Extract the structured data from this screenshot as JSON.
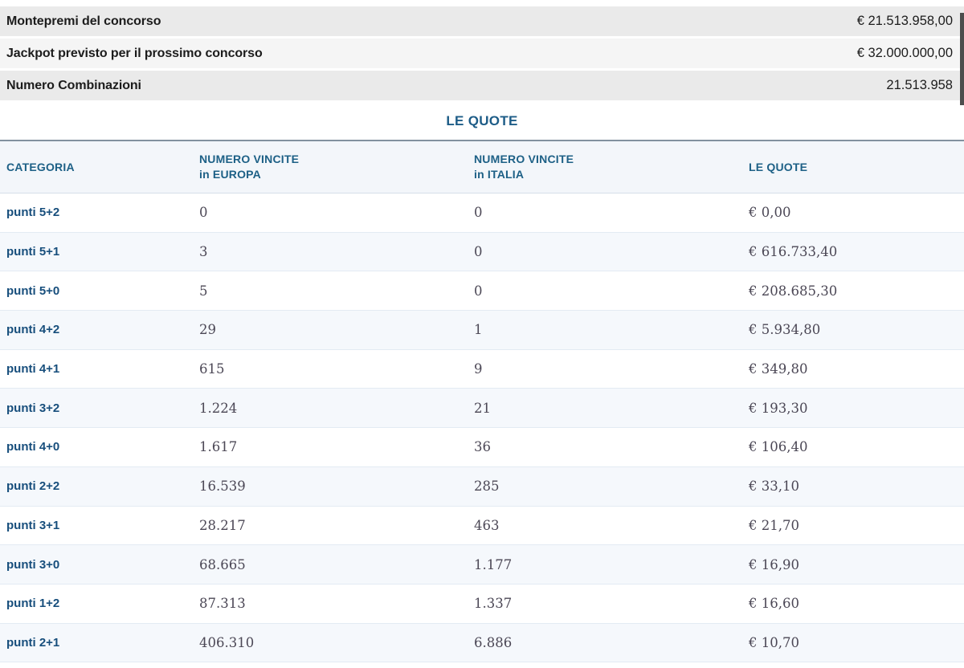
{
  "summary": {
    "rows": [
      {
        "label": "Montepremi del concorso",
        "value": "€ 21.513.958,00"
      },
      {
        "label": "Jackpot previsto per il prossimo concorso",
        "value": "€ 32.000.000,00"
      },
      {
        "label": "Numero Combinazioni",
        "value": "21.513.958"
      }
    ]
  },
  "quotes": {
    "title": "LE QUOTE",
    "columns": [
      {
        "line1": "CATEGORIA",
        "line2": ""
      },
      {
        "line1": "NUMERO VINCITE",
        "line2": "in EUROPA"
      },
      {
        "line1": "NUMERO VINCITE",
        "line2": "in ITALIA"
      },
      {
        "line1": "LE QUOTE",
        "line2": ""
      }
    ],
    "rows": [
      {
        "category": "punti 5+2",
        "wins_europe": "0",
        "wins_italy": "0",
        "quote": "€ 0,00"
      },
      {
        "category": "punti 5+1",
        "wins_europe": "3",
        "wins_italy": "0",
        "quote": "€ 616.733,40"
      },
      {
        "category": "punti 5+0",
        "wins_europe": "5",
        "wins_italy": "0",
        "quote": "€ 208.685,30"
      },
      {
        "category": "punti 4+2",
        "wins_europe": "29",
        "wins_italy": "1",
        "quote": "€ 5.934,80"
      },
      {
        "category": "punti 4+1",
        "wins_europe": "615",
        "wins_italy": "9",
        "quote": "€ 349,80"
      },
      {
        "category": "punti 3+2",
        "wins_europe": "1.224",
        "wins_italy": "21",
        "quote": "€ 193,30"
      },
      {
        "category": "punti 4+0",
        "wins_europe": "1.617",
        "wins_italy": "36",
        "quote": "€ 106,40"
      },
      {
        "category": "punti 2+2",
        "wins_europe": "16.539",
        "wins_italy": "285",
        "quote": "€ 33,10"
      },
      {
        "category": "punti 3+1",
        "wins_europe": "28.217",
        "wins_italy": "463",
        "quote": "€ 21,70"
      },
      {
        "category": "punti 3+0",
        "wins_europe": "68.665",
        "wins_italy": "1.177",
        "quote": "€ 16,90"
      },
      {
        "category": "punti 1+2",
        "wins_europe": "87.313",
        "wins_italy": "1.337",
        "quote": "€ 16,60"
      },
      {
        "category": "punti 2+1",
        "wins_europe": "406.310",
        "wins_italy": "6.886",
        "quote": "€ 10,70"
      }
    ]
  },
  "colors": {
    "accent_blue": "#1d5c87",
    "category_blue": "#174e7c",
    "row_alt": "#f5f8fc",
    "summary_dark": "#eaeaea",
    "summary_light": "#f5f5f5"
  }
}
